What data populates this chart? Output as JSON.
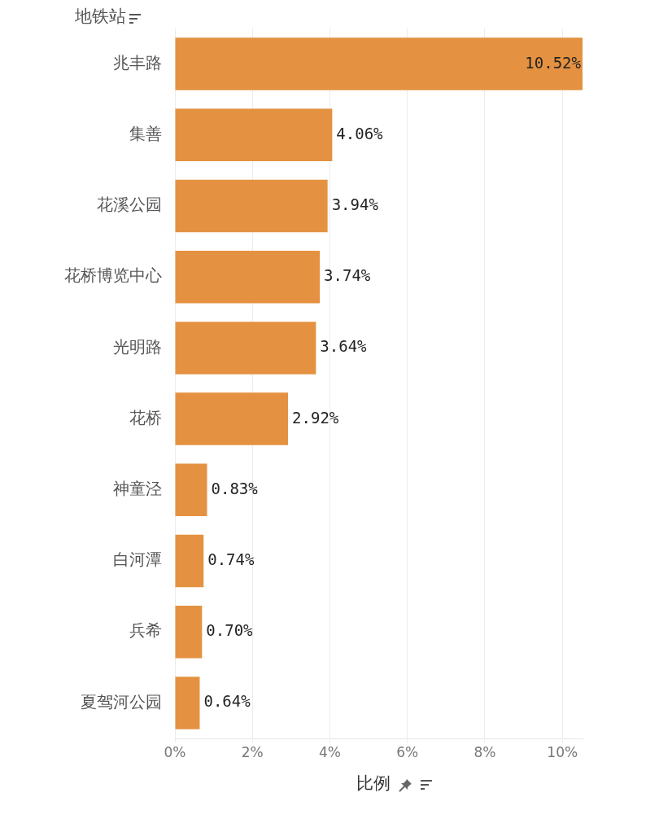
{
  "chart_data": {
    "type": "bar",
    "orientation": "horizontal",
    "ylabel": "地铁站",
    "xlabel": "比例",
    "categories": [
      "兆丰路",
      "集善",
      "花溪公园",
      "花桥博览中心",
      "光明路",
      "花桥",
      "神童泾",
      "白河潭",
      "兵希",
      "夏驾河公园"
    ],
    "values": [
      10.52,
      4.06,
      3.94,
      3.74,
      3.64,
      2.92,
      0.83,
      0.74,
      0.7,
      0.64
    ],
    "value_labels": [
      "10.52%",
      "4.06%",
      "3.94%",
      "3.74%",
      "3.64%",
      "2.92%",
      "0.83%",
      "0.74%",
      "0.70%",
      "0.64%"
    ],
    "color": "#e49241",
    "xlim": [
      0,
      10.52
    ],
    "xticks": [
      {
        "value": 0,
        "label": "0%"
      },
      {
        "value": 2,
        "label": "2%"
      },
      {
        "value": 4,
        "label": "4%"
      },
      {
        "value": 6,
        "label": "6%"
      },
      {
        "value": 8,
        "label": "8%"
      },
      {
        "value": 10,
        "label": "10%"
      }
    ],
    "grid": "x"
  }
}
